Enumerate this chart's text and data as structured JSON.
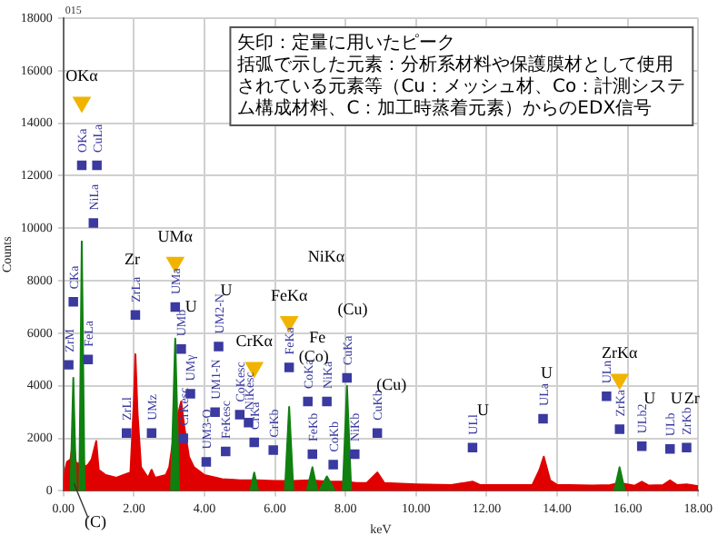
{
  "chart_data": {
    "type": "area",
    "title": "015",
    "xlabel": "keV",
    "ylabel": "Counts",
    "xlim": [
      0,
      18
    ],
    "xticks": [
      {
        "value": 0,
        "label": "0.00"
      },
      {
        "value": 2,
        "label": "2.00"
      },
      {
        "value": 4,
        "label": "4.00"
      },
      {
        "value": 6,
        "label": "6.00"
      },
      {
        "value": 8,
        "label": "8.00"
      },
      {
        "value": 10,
        "label": "10.00"
      },
      {
        "value": 12,
        "label": "12.00"
      },
      {
        "value": 14,
        "label": "14.00"
      },
      {
        "value": 16,
        "label": "16.00"
      },
      {
        "value": 18,
        "label": "18.00"
      }
    ],
    "ylim": [
      0,
      18000
    ],
    "yticks": [
      0,
      2000,
      4000,
      6000,
      8000,
      10000,
      12000,
      14000,
      16000,
      18000
    ],
    "grid": true,
    "legend": false,
    "series": [
      {
        "color": "#e00000",
        "x": [
          0,
          0.05,
          0.1,
          0.2,
          0.28,
          0.35,
          0.45,
          0.52,
          0.6,
          0.7,
          0.8,
          0.93,
          1.0,
          1.2,
          1.5,
          1.79,
          1.9,
          2.0,
          2.04,
          2.1,
          2.2,
          2.4,
          2.5,
          2.6,
          2.9,
          3.0,
          3.17,
          3.34,
          3.42,
          3.56,
          3.7,
          4.0,
          4.5,
          5.0,
          5.5,
          6.0,
          6.5,
          7.0,
          7.5,
          8.0,
          8.3,
          8.6,
          8.9,
          9.1,
          10,
          11,
          11.6,
          11.8,
          12.5,
          13.3,
          13.5,
          13.62,
          13.8,
          14,
          15,
          15.5,
          15.77,
          16.2,
          16.4,
          16.6,
          17.0,
          17.2,
          17.4,
          17.67,
          18
        ],
        "values": [
          0,
          800,
          1100,
          1200,
          2000,
          1100,
          1000,
          1500,
          900,
          1000,
          1200,
          1900,
          800,
          600,
          500,
          650,
          700,
          3500,
          5200,
          3000,
          900,
          500,
          800,
          500,
          600,
          900,
          2500,
          3400,
          2500,
          1300,
          900,
          600,
          450,
          400,
          400,
          380,
          380,
          400,
          350,
          350,
          300,
          300,
          700,
          300,
          250,
          220,
          350,
          230,
          220,
          230,
          800,
          1300,
          400,
          230,
          200,
          220,
          300,
          200,
          350,
          200,
          220,
          400,
          220,
          250,
          180
        ]
      },
      {
        "color": "#108010",
        "x": [
          0.2,
          0.28,
          0.36,
          0.4,
          0.45,
          0.52,
          0.6,
          1.0,
          3.05,
          3.17,
          3.28,
          4.0,
          5.3,
          5.41,
          5.52,
          6.0,
          6.28,
          6.4,
          6.52,
          6.7,
          6.9,
          7.06,
          7.2,
          7.22,
          7.25,
          7.47,
          7.7,
          7.8,
          7.92,
          8.04,
          8.16,
          10,
          15.62,
          15.77,
          15.92
        ],
        "values": [
          0,
          4300,
          0,
          null,
          0,
          9500,
          0,
          null,
          0,
          5800,
          0,
          null,
          0,
          700,
          0,
          null,
          0,
          3200,
          0,
          null,
          0,
          900,
          0,
          null,
          0,
          550,
          0,
          null,
          0,
          4000,
          0,
          null,
          0,
          900,
          0
        ]
      },
      {
        "type": "scatter",
        "marker": "square",
        "color": "#3a3aa0",
        "x": [
          0.15,
          0.28,
          0.52,
          0.7,
          0.85,
          0.95,
          1.79,
          2.04,
          2.5,
          3.17,
          3.34,
          3.6,
          3.4,
          4.05,
          4.3,
          4.4,
          4.6,
          5.0,
          5.25,
          5.41,
          5.95,
          6.4,
          6.93,
          7.06,
          7.47,
          7.65,
          8.04,
          8.26,
          8.9,
          11.6,
          13.6,
          15.4,
          15.77,
          16.4,
          17.2,
          17.67
        ],
        "values": [
          4800,
          7200,
          12400,
          5000,
          10200,
          12400,
          2200,
          6700,
          2200,
          7000,
          5400,
          3700,
          2000,
          1100,
          3000,
          5500,
          1500,
          2900,
          2600,
          1850,
          1550,
          4700,
          3400,
          1400,
          3400,
          1000,
          4300,
          1400,
          2200,
          1650,
          2750,
          3600,
          2350,
          1700,
          1600,
          1650
        ],
        "value_labels": [
          "ZrM",
          "CKa",
          "OKa",
          "FeLa",
          "NiLa",
          "CuLa",
          "ZrLl",
          "ZrLa",
          "UMz",
          "UMa",
          "UMb",
          "UMγ",
          "CrKesc",
          "UM3-O",
          "UM1-N",
          "UM2-N",
          "FeKesc",
          "CoKesc",
          "NiKesc",
          "CrKa",
          "CrKb",
          "FeKa",
          "CoKa",
          "FeKb",
          "NiKa",
          "CoKb",
          "CuKa",
          "NiKb",
          "CuKb",
          "ULl",
          "ULa",
          "ULn",
          "ZrKa",
          "ULb2",
          "ULb",
          "ZrKb"
        ]
      },
      {
        "type": "scatter",
        "marker": "triangle",
        "color": "#f0b400",
        "x": [
          0.52,
          3.17,
          5.41,
          6.4,
          15.77
        ],
        "values": [
          14800,
          8700,
          4700,
          6450,
          4250
        ],
        "value_labels": [
          "OKα",
          "UMα",
          "CrKα",
          "FeKα",
          "ZrKα"
        ]
      }
    ],
    "annotations": [
      "矢印：定量に用いたピーク",
      "括弧で示した元素：分析系材料や保護膜材として使用",
      "されている元素等（Cu：メッシュ材、Co：計測システ",
      "ム構成材料、C：加工時蒸着元素）からのEDX信号",
      "Zr",
      "NiKα",
      "Fe",
      "(Co)",
      "(Cu)",
      "(Cu)",
      "U",
      "U",
      "(C)",
      "U",
      "U",
      "U",
      "U",
      "Zr"
    ]
  }
}
